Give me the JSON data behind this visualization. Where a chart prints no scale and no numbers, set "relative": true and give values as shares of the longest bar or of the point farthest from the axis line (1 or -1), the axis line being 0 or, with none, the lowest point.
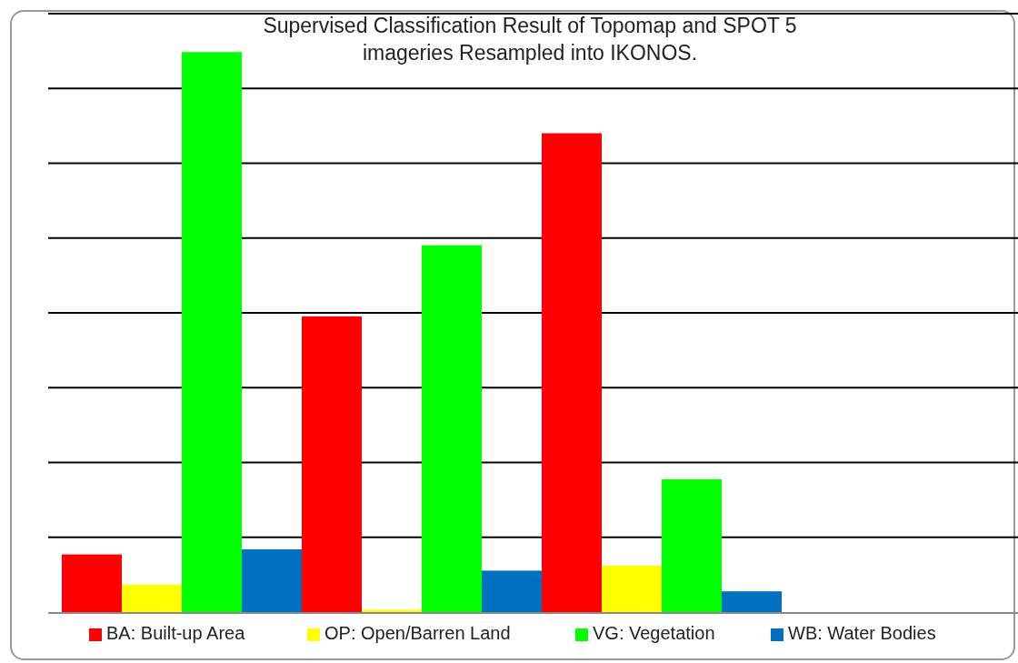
{
  "chart_data": {
    "type": "bar",
    "title": "Supervised Classification Result of Topomap and SPOT 5 imageries Resampled into IKONOS.",
    "relative": true,
    "categories": [
      null,
      null,
      null
    ],
    "grid": true,
    "legend": "bottom",
    "series": [
      {
        "name": "BA: Built-up Area",
        "color": "#ff0000",
        "values": [
          0.103,
          0.528,
          0.855
        ]
      },
      {
        "name": "OP: Open/Barren Land",
        "color": "#ffff00",
        "values": [
          0.049,
          0.004,
          0.083
        ]
      },
      {
        "name": "VG: Vegetation",
        "color": "#00ff00",
        "values": [
          1,
          0.655,
          0.237
        ]
      },
      {
        "name": "WB: Water Bodies",
        "color": "#0070c0",
        "values": [
          0.112,
          0.074,
          0.037
        ]
      }
    ]
  }
}
